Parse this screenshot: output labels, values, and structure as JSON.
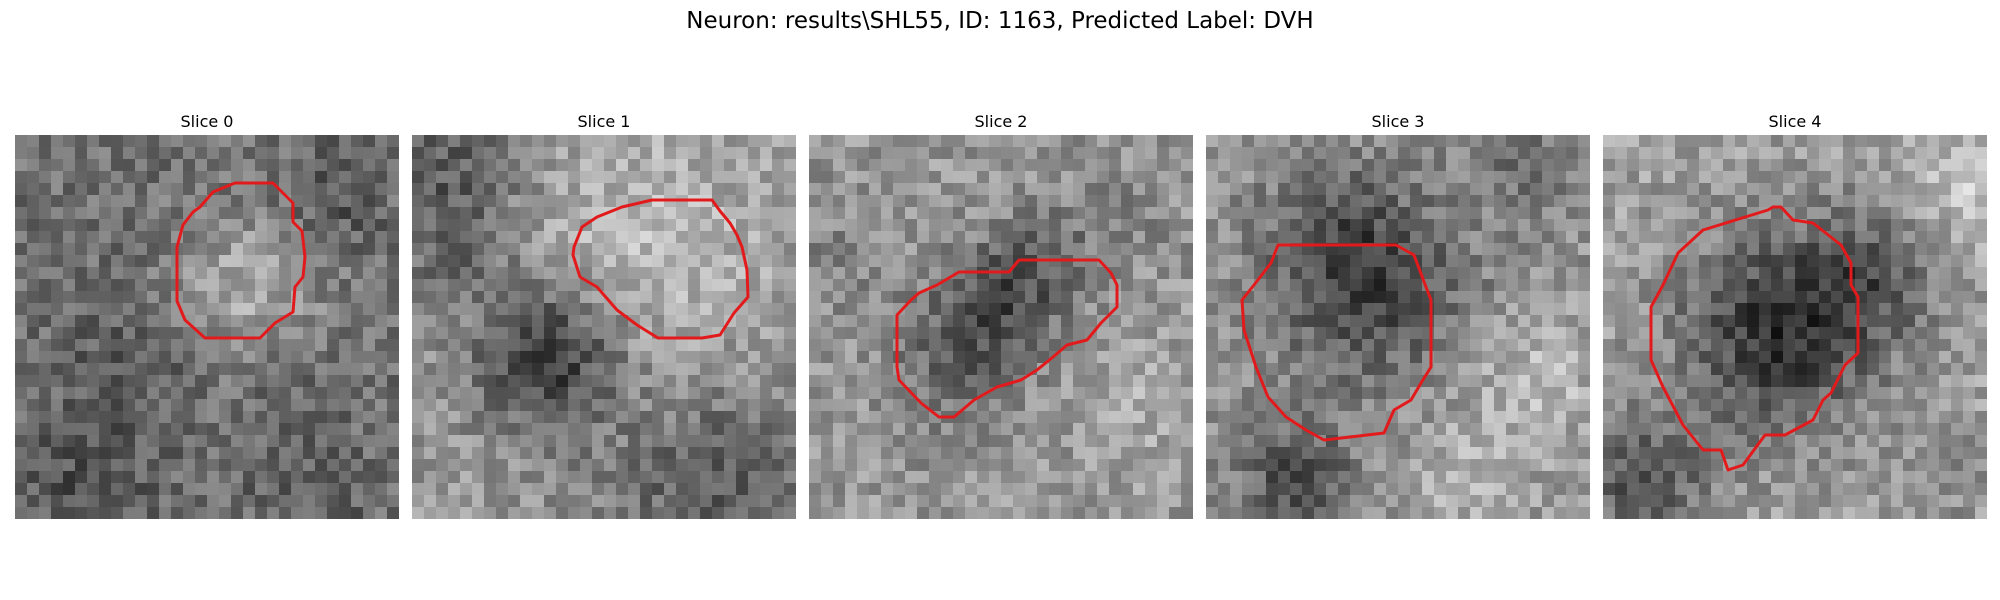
{
  "figure": {
    "title": "Neuron: results\\SHL55, ID: 1163, Predicted Label: DVH",
    "contour_color": "#e31a1c"
  },
  "panels": [
    {
      "title": "Slice 0"
    },
    {
      "title": "Slice 1"
    },
    {
      "title": "Slice 2"
    },
    {
      "title": "Slice 3"
    },
    {
      "title": "Slice 4"
    }
  ]
}
